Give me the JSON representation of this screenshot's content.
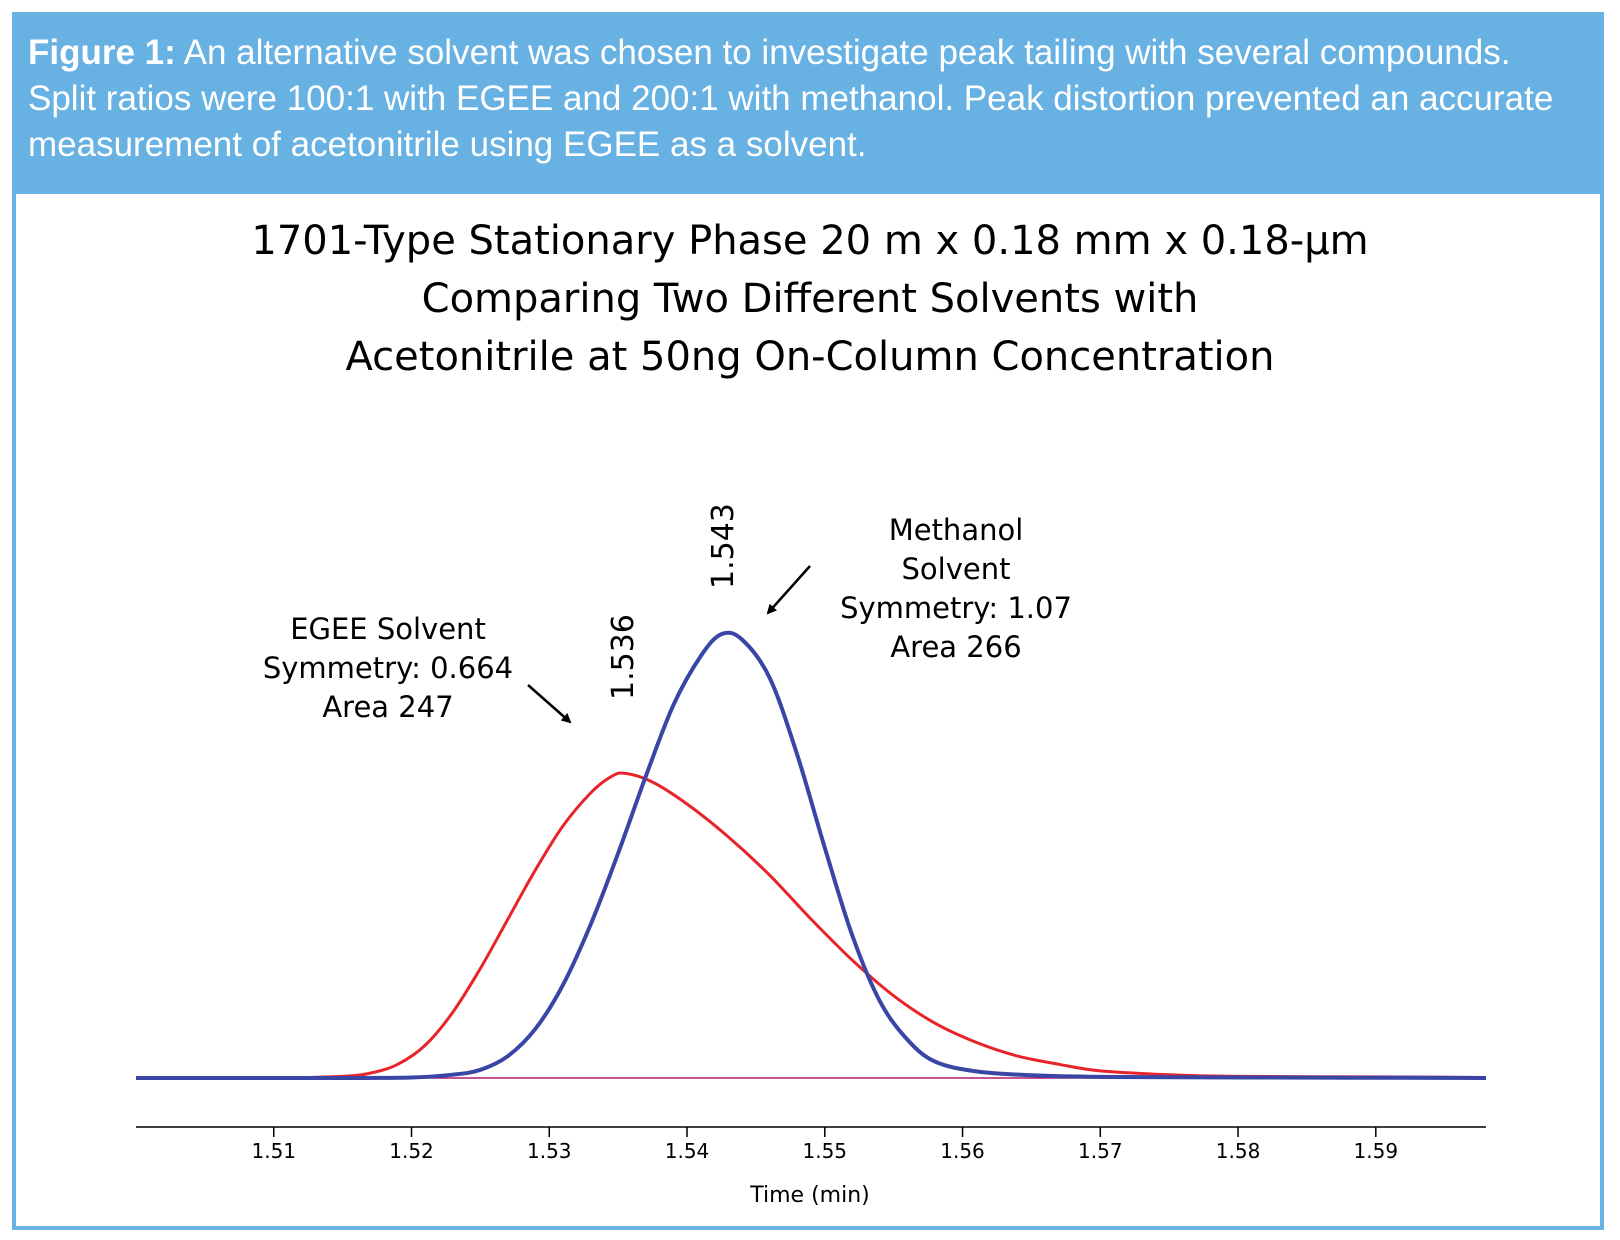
{
  "caption": {
    "label": "Figure 1:",
    "text": "An alternative solvent was chosen to investigate peak tailing with several compounds. Split ratios were 100:1 with EGEE and 200:1 with methanol. Peak distortion prevented an accurate measurement of acetonitrile using EGEE as a solvent."
  },
  "colors": {
    "frame": "#67b1e3",
    "egee": "#e8232a",
    "methanol": "#3a46a6",
    "baseline": "#b21d6e"
  },
  "chart_data": {
    "type": "line",
    "title": [
      "1701-Type Stationary Phase 20 m x 0.18 mm x 0.18-µm",
      "Comparing Two Different Solvents with",
      "Acetonitrile at 50ng On-Column Concentration"
    ],
    "xlabel": "Time (min)",
    "ylabel": "",
    "xlim": [
      1.5,
      1.598
    ],
    "ylim": [
      0,
      1
    ],
    "xticks": [
      "1.51",
      "1.52",
      "1.53",
      "1.54",
      "1.55",
      "1.56",
      "1.57",
      "1.58",
      "1.59"
    ],
    "series": [
      {
        "name": "EGEE Solvent",
        "peak_time": 1.536,
        "peak_label": "1.536",
        "symmetry": "Symmetry: 0.664",
        "area": "Area 247",
        "points": [
          [
            1.5,
            0
          ],
          [
            1.51,
            0
          ],
          [
            1.515,
            0.003
          ],
          [
            1.517,
            0.009
          ],
          [
            1.519,
            0.025
          ],
          [
            1.521,
            0.06
          ],
          [
            1.523,
            0.12
          ],
          [
            1.525,
            0.2
          ],
          [
            1.527,
            0.29
          ],
          [
            1.529,
            0.38
          ],
          [
            1.531,
            0.46
          ],
          [
            1.533,
            0.52
          ],
          [
            1.5345,
            0.55
          ],
          [
            1.5355,
            0.556
          ],
          [
            1.5375,
            0.54
          ],
          [
            1.54,
            0.5
          ],
          [
            1.543,
            0.44
          ],
          [
            1.546,
            0.37
          ],
          [
            1.549,
            0.29
          ],
          [
            1.552,
            0.215
          ],
          [
            1.555,
            0.15
          ],
          [
            1.558,
            0.1
          ],
          [
            1.561,
            0.065
          ],
          [
            1.564,
            0.04
          ],
          [
            1.567,
            0.025
          ],
          [
            1.57,
            0.013
          ],
          [
            1.575,
            0.006
          ],
          [
            1.58,
            0.003
          ],
          [
            1.59,
            0.002
          ],
          [
            1.598,
            0.001
          ]
        ]
      },
      {
        "name": "Methanol Solvent",
        "peak_time": 1.543,
        "peak_label": "1.543",
        "symmetry": "Symmetry: 1.07",
        "area": "Area 266",
        "points": [
          [
            1.5,
            0
          ],
          [
            1.515,
            0
          ],
          [
            1.52,
            0.001
          ],
          [
            1.523,
            0.006
          ],
          [
            1.525,
            0.015
          ],
          [
            1.527,
            0.04
          ],
          [
            1.529,
            0.09
          ],
          [
            1.531,
            0.17
          ],
          [
            1.533,
            0.28
          ],
          [
            1.535,
            0.41
          ],
          [
            1.537,
            0.55
          ],
          [
            1.539,
            0.68
          ],
          [
            1.541,
            0.77
          ],
          [
            1.5425,
            0.81
          ],
          [
            1.544,
            0.8
          ],
          [
            1.546,
            0.73
          ],
          [
            1.548,
            0.59
          ],
          [
            1.55,
            0.42
          ],
          [
            1.552,
            0.26
          ],
          [
            1.554,
            0.14
          ],
          [
            1.556,
            0.07
          ],
          [
            1.558,
            0.03
          ],
          [
            1.561,
            0.012
          ],
          [
            1.565,
            0.005
          ],
          [
            1.57,
            0.002
          ],
          [
            1.58,
            0.001
          ],
          [
            1.598,
            0
          ]
        ]
      }
    ],
    "annotations": {
      "egee": [
        "EGEE Solvent",
        "Symmetry: 0.664",
        "Area 247"
      ],
      "methanol": [
        "Methanol",
        "Solvent",
        "Symmetry: 1.07",
        "Area 266"
      ]
    }
  }
}
